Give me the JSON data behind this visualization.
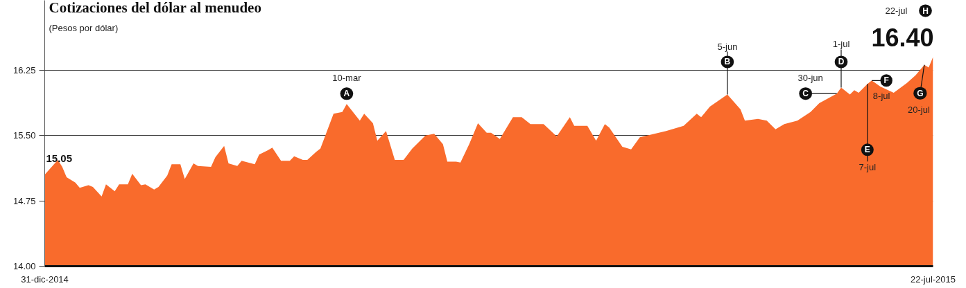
{
  "chart_data": {
    "type": "area",
    "title": "Cotizaciones del dólar al menudeo",
    "subtitle": "(Pesos por dólar)",
    "x": [
      "2014-12-31",
      "2015-01-03",
      "2015-01-04",
      "2015-01-05",
      "2015-01-07",
      "2015-01-08",
      "2015-01-10",
      "2015-01-11",
      "2015-01-13",
      "2015-01-14",
      "2015-01-16",
      "2015-01-17",
      "2015-01-19",
      "2015-01-20",
      "2015-01-22",
      "2015-01-23",
      "2015-01-25",
      "2015-01-26",
      "2015-01-28",
      "2015-01-29",
      "2015-01-31",
      "2015-02-01",
      "2015-02-03",
      "2015-02-04",
      "2015-02-07",
      "2015-02-08",
      "2015-02-10",
      "2015-02-11",
      "2015-02-13",
      "2015-02-14",
      "2015-02-17",
      "2015-02-18",
      "2015-02-20",
      "2015-02-21",
      "2015-02-23",
      "2015-02-25",
      "2015-02-26",
      "2015-02-28",
      "2015-03-01",
      "2015-03-03",
      "2015-03-04",
      "2015-03-07",
      "2015-03-09",
      "2015-03-10",
      "2015-03-13",
      "2015-03-14",
      "2015-03-16",
      "2015-03-17",
      "2015-03-19",
      "2015-03-21",
      "2015-03-23",
      "2015-03-25",
      "2015-03-28",
      "2015-03-30",
      "2015-04-01",
      "2015-04-02",
      "2015-04-04",
      "2015-04-05",
      "2015-04-07",
      "2015-04-09",
      "2015-04-11",
      "2015-04-12",
      "2015-04-14",
      "2015-04-17",
      "2015-04-19",
      "2015-04-21",
      "2015-04-24",
      "2015-04-27",
      "2015-04-30",
      "2015-05-01",
      "2015-05-04",
      "2015-05-06",
      "2015-05-08",
      "2015-05-09",
      "2015-05-12",
      "2015-05-14",
      "2015-05-16",
      "2015-05-22",
      "2015-05-26",
      "2015-05-29",
      "2015-05-30",
      "2015-06-01",
      "2015-06-05",
      "2015-06-08",
      "2015-06-09",
      "2015-06-12",
      "2015-06-14",
      "2015-06-16",
      "2015-06-18",
      "2015-06-21",
      "2015-06-24",
      "2015-06-26",
      "2015-06-30",
      "2015-07-01",
      "2015-07-03",
      "2015-07-04",
      "2015-07-05",
      "2015-07-07",
      "2015-07-08",
      "2015-07-10",
      "2015-07-13",
      "2015-07-16",
      "2015-07-18",
      "2015-07-20",
      "2015-07-21",
      "2015-07-22"
    ],
    "series": [
      {
        "color": "#f96b2c",
        "values": [
          15.05,
          15.22,
          15.14,
          15.02,
          14.96,
          14.9,
          14.93,
          14.91,
          14.8,
          14.94,
          14.86,
          14.94,
          14.94,
          15.06,
          14.93,
          14.94,
          14.88,
          14.91,
          15.04,
          15.17,
          15.17,
          15.0,
          15.18,
          15.15,
          15.14,
          15.25,
          15.38,
          15.18,
          15.15,
          15.21,
          15.17,
          15.28,
          15.33,
          15.36,
          15.21,
          15.21,
          15.26,
          15.22,
          15.22,
          15.31,
          15.35,
          15.75,
          15.77,
          15.86,
          15.67,
          15.75,
          15.64,
          15.44,
          15.55,
          15.22,
          15.22,
          15.35,
          15.5,
          15.52,
          15.4,
          15.2,
          15.2,
          15.19,
          15.4,
          15.64,
          15.53,
          15.53,
          15.46,
          15.71,
          15.71,
          15.63,
          15.63,
          15.49,
          15.71,
          15.61,
          15.61,
          15.44,
          15.63,
          15.59,
          15.37,
          15.34,
          15.48,
          15.55,
          15.61,
          15.75,
          15.71,
          15.83,
          15.97,
          15.8,
          15.67,
          15.69,
          15.67,
          15.57,
          15.63,
          15.67,
          15.77,
          15.87,
          15.98,
          16.05,
          15.97,
          16.02,
          15.99,
          16.09,
          16.13,
          16.06,
          15.99,
          16.1,
          16.19,
          16.31,
          16.28,
          16.4
        ]
      }
    ],
    "xlim": [
      "2014-12-31",
      "2015-07-22"
    ],
    "xticks": [
      {
        "value": "2014-12-31",
        "label": "31-dic-2014"
      },
      {
        "value": "2015-07-22",
        "label": "22-jul-2015"
      }
    ],
    "ylim": [
      14,
      17.05
    ],
    "yticks": [
      {
        "value": 14,
        "label": "14.00"
      },
      {
        "value": 14.75,
        "label": "14.75"
      },
      {
        "value": 15.5,
        "label": "15.50"
      },
      {
        "value": 16.25,
        "label": "16.25"
      }
    ],
    "grid": "y",
    "annotations": [
      {
        "text": "15.05",
        "x": "2014-12-31",
        "y": 15.05
      },
      {
        "text": "A",
        "x": "2015-03-10",
        "y": 15.86
      },
      {
        "text": "10-mar",
        "x": "2015-03-10",
        "y": 15.86
      },
      {
        "text": "B",
        "x": "2015-06-05",
        "y": 15.97
      },
      {
        "text": "5-jun",
        "x": "2015-06-05",
        "y": 15.97
      },
      {
        "text": "C",
        "x": "2015-06-30",
        "y": 15.98
      },
      {
        "text": "30-jun",
        "x": "2015-06-30",
        "y": 15.98
      },
      {
        "text": "D",
        "x": "2015-07-01",
        "y": 16.05
      },
      {
        "text": "1-jul",
        "x": "2015-07-01",
        "y": 16.05
      },
      {
        "text": "E",
        "x": "2015-07-07",
        "y": 16.09
      },
      {
        "text": "7-jul",
        "x": "2015-07-07",
        "y": 16.09
      },
      {
        "text": "F",
        "x": "2015-07-08",
        "y": 16.13
      },
      {
        "text": "8-jul",
        "x": "2015-07-08",
        "y": 16.13
      },
      {
        "text": "G",
        "x": "2015-07-20",
        "y": 16.31
      },
      {
        "text": "20-jul",
        "x": "2015-07-20",
        "y": 16.31
      },
      "H",
      "22-jul",
      {
        "text": "16.40",
        "x": "2015-07-22",
        "y": 16.4
      }
    ]
  }
}
